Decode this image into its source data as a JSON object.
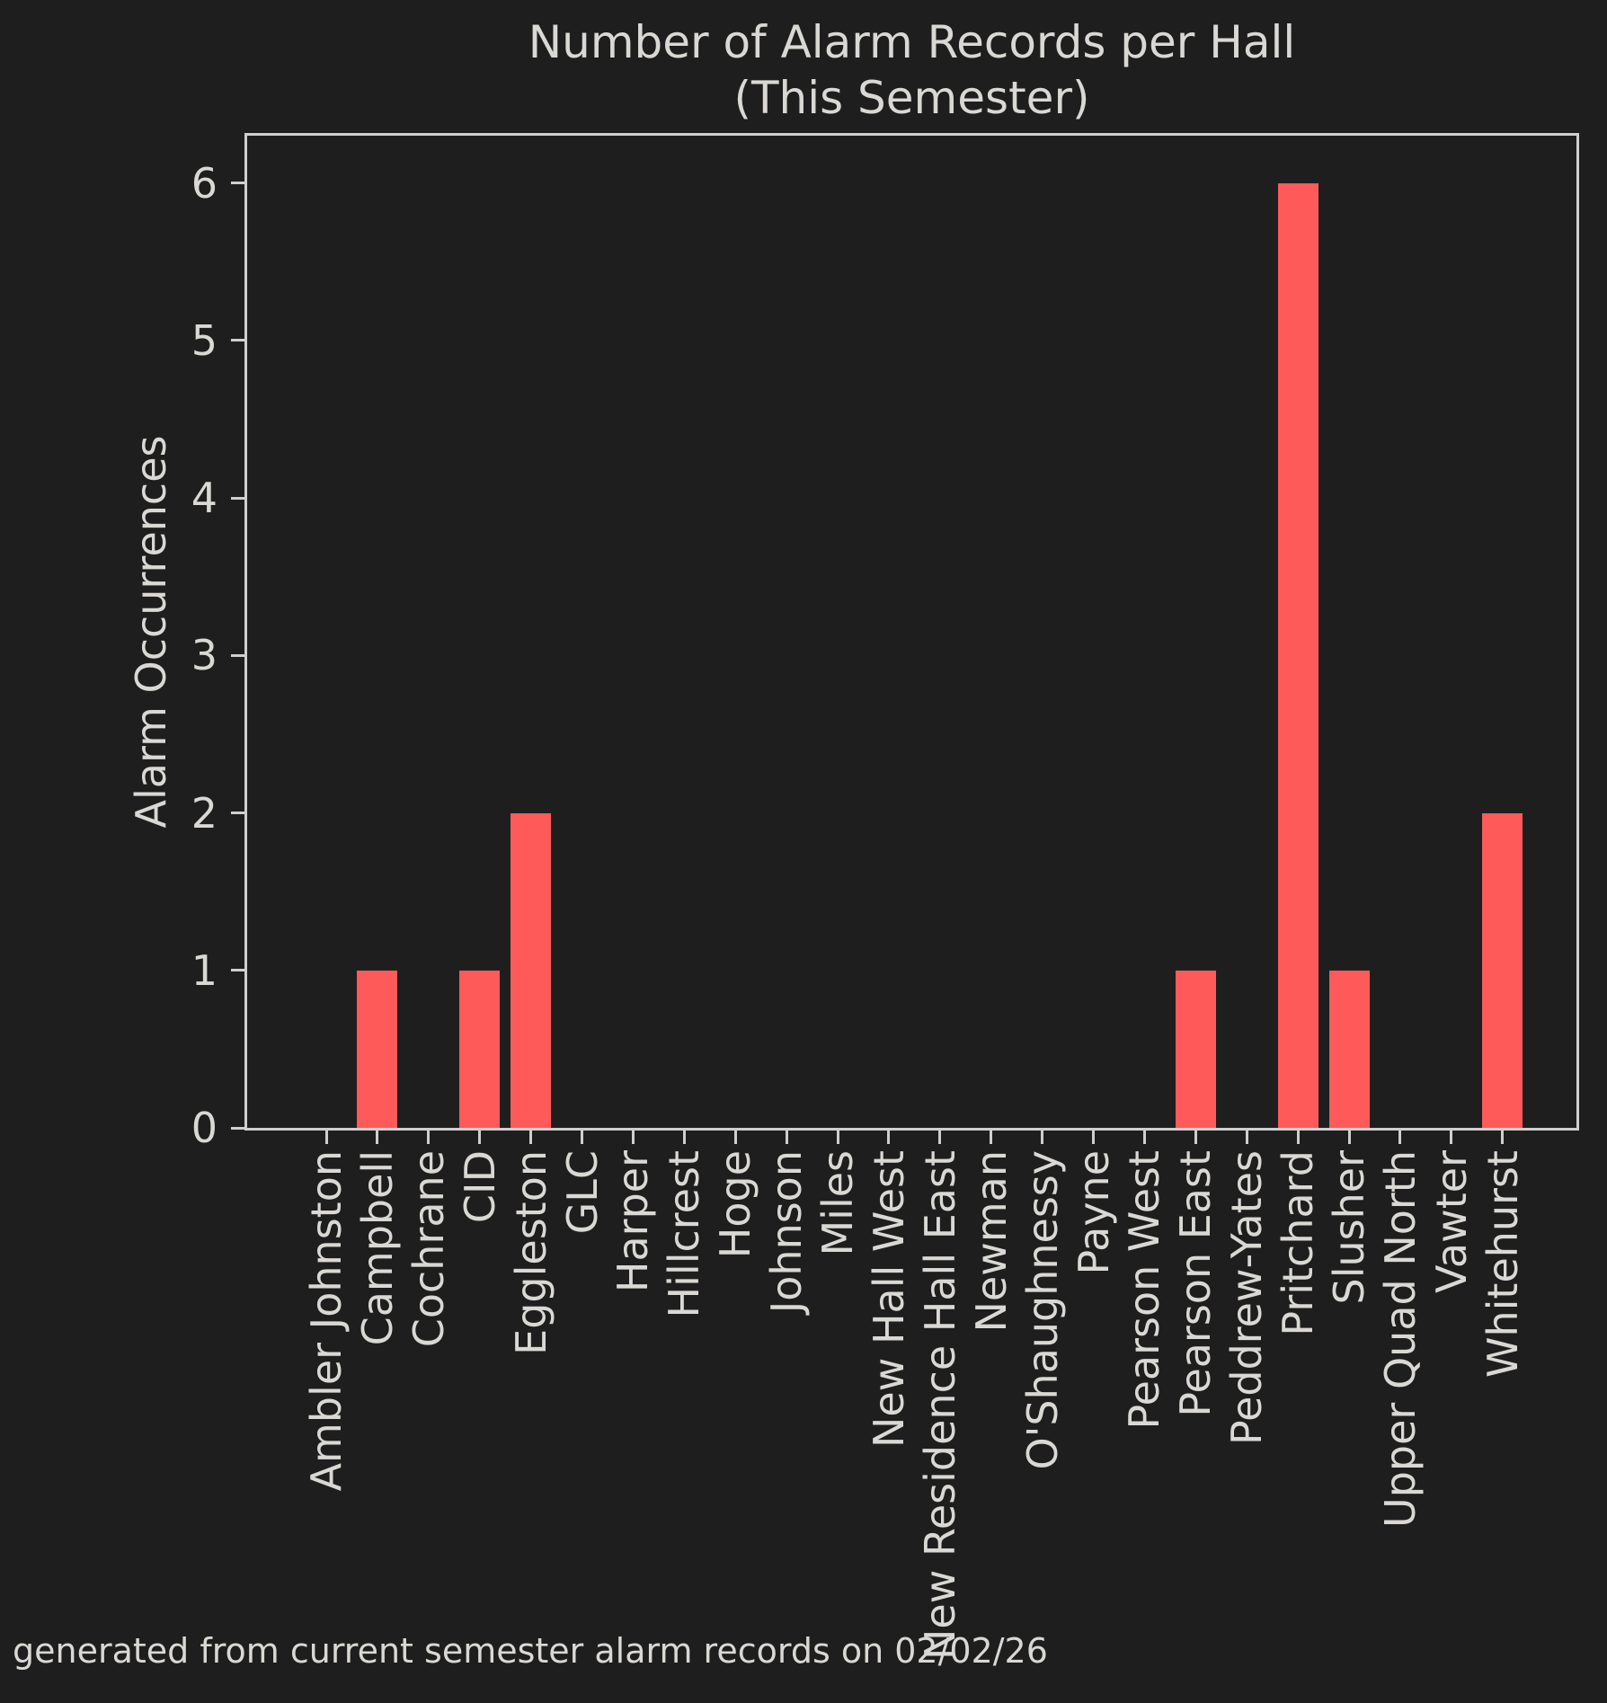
{
  "chart_data": {
    "type": "bar",
    "title": "Number of Alarm Records per Hall (This Semester)",
    "title_line1": "Number of Alarm Records per Hall",
    "title_line2": "(This Semester)",
    "xlabel": "",
    "ylabel": "Alarm Occurrences",
    "categories": [
      "Ambler Johnston",
      "Campbell",
      "Cochrane",
      "CID",
      "Eggleston",
      "GLC",
      "Harper",
      "Hillcrest",
      "Hoge",
      "Johnson",
      "Miles",
      "New Hall West",
      "New Residence Hall East",
      "Newman",
      "O'Shaughnessy",
      "Payne",
      "Pearson West",
      "Pearson East",
      "Peddrew-Yates",
      "Pritchard",
      "Slusher",
      "Upper Quad North",
      "Vawter",
      "Whitehurst"
    ],
    "values": [
      0,
      1,
      0,
      1,
      2,
      0,
      0,
      0,
      0,
      0,
      0,
      0,
      0,
      0,
      0,
      0,
      0,
      1,
      0,
      6,
      1,
      0,
      0,
      2
    ],
    "yticks": [
      0,
      1,
      2,
      3,
      4,
      5,
      6
    ],
    "ylim": [
      0,
      6.3
    ],
    "bar_width_fraction": 0.8,
    "x_tick_rotation_deg": 90,
    "grid": false,
    "legend": null,
    "colors": {
      "bar": "#ff5a5a",
      "background": "#1f1e1e",
      "text": "#d9d8d4",
      "spine": "#cfcfcf"
    },
    "annotation": "generated from current semester alarm records on 02/02/26"
  }
}
